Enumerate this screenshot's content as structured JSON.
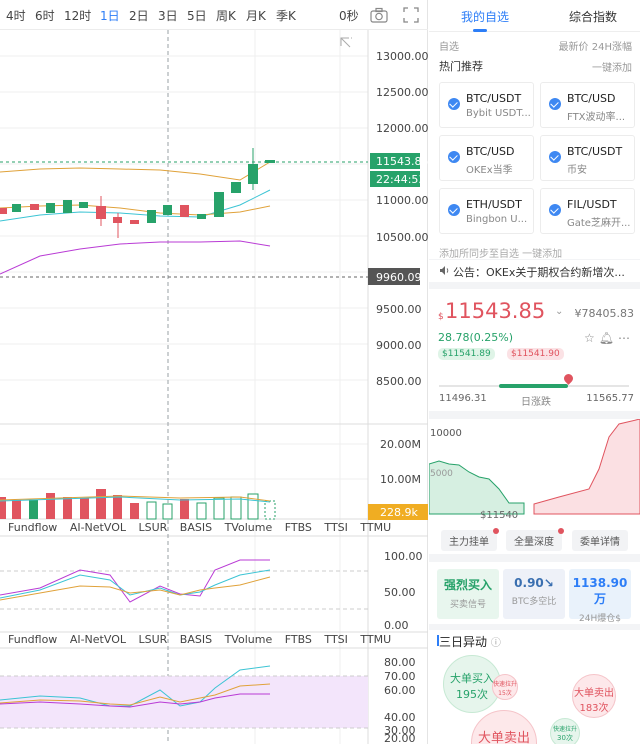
{
  "timeframes": {
    "items": [
      "4时",
      "6时",
      "12时",
      "1日",
      "2日",
      "3日",
      "5日",
      "周K",
      "月K",
      "季K"
    ],
    "active_index": 3,
    "countdown": "0秒"
  },
  "chart": {
    "price_axis": [
      "13000.00",
      "12500.00",
      "12000.00",
      "11500.00",
      "11000.00",
      "10500.00",
      "10000.00",
      "9500.00",
      "9000.00",
      "8500.00"
    ],
    "last_price_label": "11543.85",
    "time_label": "22:44:53",
    "ref_price_label": "9960.09",
    "volume_axis": [
      "20.00M",
      "10.00M"
    ],
    "volume_label": "228.9k",
    "indicator_tabs": [
      "Fundflow",
      "AI-NetVOL",
      "LSUR",
      "BASIS",
      "TVolume",
      "FTBS",
      "TTSI",
      "TTMU"
    ],
    "osc1_axis": [
      "100.00",
      "50.00",
      "0.00"
    ],
    "osc2_axis": [
      "80.00",
      "70.00",
      "60.00",
      "40.00",
      "30.00",
      "20.00"
    ],
    "colors": {
      "up": "#27a26a",
      "down": "#e0545f",
      "grid": "#eeeeee"
    }
  },
  "right": {
    "tabs": [
      "我的自选",
      "综合指数"
    ],
    "fav_header": "自选",
    "fav_cols": "最新价  24H涨幅",
    "hot_title": "热门推荐",
    "one_add": "一键添加",
    "cards": [
      {
        "pair": "BTC/USDT",
        "exchange": "Bybit USDT..."
      },
      {
        "pair": "BTC/USD",
        "exchange": "FTX波动率..."
      },
      {
        "pair": "BTC/USD",
        "exchange": "OKEx当季"
      },
      {
        "pair": "BTC/USDT",
        "exchange": "币安"
      },
      {
        "pair": "ETH/USDT",
        "exchange": "Bingbon U..."
      },
      {
        "pair": "FIL/USDT",
        "exchange": "Gate芝麻开..."
      }
    ],
    "add_fav": "添加所同步至自选     一键添加",
    "notice": "公告：OKEx关于期权合约新增次...",
    "price": "11543.85",
    "price_usd": "¥78405.83",
    "change": "28.78(0.25%)",
    "bid": "$11541.89",
    "ask": "$11541.90",
    "range_low": "11496.31",
    "range_label": "日涨跌",
    "range_high": "11565.77",
    "range_position": 0.68,
    "depth_axis_top": "10000",
    "depth_axis_mid": "5000",
    "depth_mid_price": "$11540",
    "depth_buttons": [
      "主力挂单",
      "全量深度",
      "委单详情"
    ],
    "stats": [
      {
        "value": "强烈买入",
        "label": "买卖信号"
      },
      {
        "value": "0.90↘",
        "label": "BTC多空比"
      },
      {
        "value": "1138.90万",
        "label": "24H爆仓$"
      }
    ],
    "abnormal_title": "三日异动",
    "bubbles": [
      {
        "title": "大单买入",
        "count": "195次",
        "color": "#27a26a"
      },
      {
        "title": "快速拉升",
        "count": "15次",
        "color": "#e0545f"
      },
      {
        "title": "大单卖出",
        "count": "183次",
        "color": "#e0545f"
      },
      {
        "title": "快速拉升",
        "count": "30次",
        "color": "#27a26a"
      },
      {
        "title": "大单卖出",
        "count": "",
        "color": "#e0545f"
      }
    ]
  }
}
